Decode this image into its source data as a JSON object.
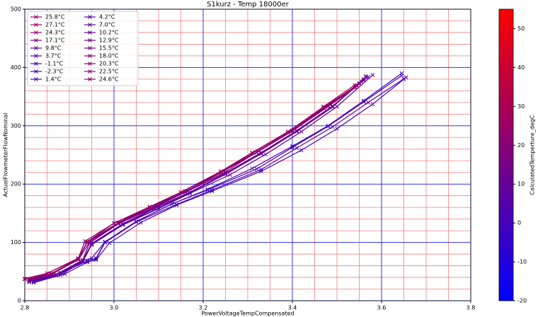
{
  "chart_data": {
    "type": "line",
    "title": "S1kurz - Temp 18000er",
    "x_label": "PowerVoltageTempCompensated",
    "y_label": "ActualFlowmeterFlowNominal",
    "xlim": [
      2.8,
      3.8
    ],
    "ylim": [
      0,
      500
    ],
    "xticks": [
      2.8,
      {
        "value": 3,
        "label": "3.0"
      },
      3.2,
      3.4,
      3.6,
      3.8
    ],
    "yticks": [
      0,
      100,
      200,
      300,
      400,
      500
    ],
    "xminorticks": [
      2.85,
      2.9,
      2.95,
      3.05,
      3.1,
      3.15,
      3.25,
      3.3,
      3.35,
      3.45,
      3.5,
      3.55,
      3.65,
      3.7,
      3.75
    ],
    "yminorticks": [
      20,
      40,
      60,
      80,
      120,
      140,
      160,
      180,
      220,
      240,
      260,
      280,
      320,
      340,
      360,
      380,
      420,
      440,
      460,
      480
    ],
    "grid": true,
    "major_grid_color": "#3333ee",
    "minor_grid_color": "#f08080",
    "marker": "x",
    "legend": {
      "position": "upper left",
      "ncol": 2
    },
    "colorbar": {
      "label": "CalculatedTemperture_degC",
      "lim": [
        -20,
        55
      ],
      "ticks": [
        -20,
        -10,
        0,
        10,
        20,
        30,
        40,
        50
      ],
      "colors": [
        "#0000ff",
        "#ff0000"
      ]
    },
    "series": [
      {
        "name": "25.8°C",
        "color": "#9c0063",
        "x": [
          2.81,
          2.86,
          2.92,
          2.94,
          3.01,
          3.08,
          3.16,
          3.24,
          3.32,
          3.4,
          3.48,
          3.55
        ],
        "values": [
          37,
          46,
          72,
          101,
          134,
          160,
          187,
          221,
          255,
          292,
          334,
          372
        ]
      },
      {
        "name": "27.1°C",
        "color": "#a0005f",
        "x": [
          2.8,
          2.85,
          2.92,
          2.935,
          3.0,
          3.08,
          3.15,
          3.24,
          3.31,
          3.39,
          3.47,
          3.54
        ],
        "values": [
          38,
          47,
          73,
          102,
          133,
          161,
          186,
          222,
          254,
          289,
          333,
          370
        ]
      },
      {
        "name": "24.3°C",
        "color": "#970068",
        "x": [
          2.81,
          2.86,
          2.92,
          2.94,
          3.01,
          3.09,
          3.16,
          3.25,
          3.32,
          3.4,
          3.48,
          3.56
        ],
        "values": [
          36,
          45,
          71,
          100,
          134,
          161,
          188,
          221,
          255,
          291,
          333,
          378
        ]
      },
      {
        "name": "17.1°C",
        "color": "#7e0081",
        "x": [
          2.81,
          2.87,
          2.93,
          2.945,
          3.01,
          3.09,
          3.16,
          3.25,
          3.33,
          3.41,
          3.49,
          3.57
        ],
        "values": [
          35,
          45,
          70,
          99,
          132,
          160,
          186,
          219,
          254,
          292,
          334,
          384
        ]
      },
      {
        "name": "9.8°C",
        "color": "#65009a",
        "x": [
          2.82,
          2.87,
          2.93,
          2.95,
          3.02,
          3.09,
          3.17,
          3.25,
          3.33,
          3.41,
          3.49,
          3.565
        ],
        "values": [
          34,
          44,
          68,
          98,
          131,
          158,
          185,
          217,
          252,
          290,
          332,
          385
        ]
      },
      {
        "name": "3.7°C",
        "color": "#5100ae",
        "x": [
          2.82,
          2.88,
          2.94,
          2.96,
          2.98,
          3.05,
          3.14,
          3.22,
          3.33,
          3.41,
          3.49,
          3.57,
          3.655
        ],
        "values": [
          32,
          47,
          68,
          72,
          100,
          135,
          165,
          190,
          225,
          262,
          298,
          340,
          383
        ]
      },
      {
        "name": "-1.1°C",
        "color": "#4000bf",
        "x": [
          2.82,
          2.89,
          2.94,
          2.96,
          2.99,
          3.06,
          3.14,
          3.22,
          3.33,
          3.42,
          3.5,
          3.58,
          3.65
        ],
        "values": [
          31,
          46,
          66,
          70,
          99,
          134,
          164,
          188,
          222,
          258,
          295,
          337,
          380
        ]
      },
      {
        "name": "-2.3°C",
        "color": "#3c00c3",
        "x": [
          2.81,
          2.88,
          2.94,
          2.96,
          2.98,
          3.05,
          3.13,
          3.21,
          3.31,
          3.4,
          3.48,
          3.56,
          3.645
        ],
        "values": [
          32,
          48,
          68,
          73,
          101,
          136,
          166,
          191,
          227,
          265,
          300,
          343,
          390
        ]
      },
      {
        "name": "1.4°C",
        "color": "#4900b6",
        "x": [
          2.81,
          2.88,
          2.93,
          2.95,
          2.98,
          3.05,
          3.13,
          3.21,
          3.32,
          3.4,
          3.48,
          3.56,
          3.645
        ],
        "values": [
          33,
          48,
          69,
          73,
          101,
          136,
          166,
          190,
          226,
          263,
          299,
          341,
          386
        ]
      },
      {
        "name": "4.2°C",
        "color": "#5200ad",
        "x": [
          2.82,
          2.88,
          2.93,
          2.95,
          3.02,
          3.1,
          3.17,
          3.26,
          3.34,
          3.42,
          3.5,
          3.58
        ],
        "values": [
          33,
          44,
          67,
          96,
          130,
          158,
          184,
          216,
          251,
          290,
          333,
          387
        ]
      },
      {
        "name": "7.0°C",
        "color": "#5c00a3",
        "x": [
          2.82,
          2.87,
          2.93,
          2.95,
          3.02,
          3.1,
          3.17,
          3.25,
          3.33,
          3.41,
          3.49,
          3.565
        ],
        "values": [
          34,
          44,
          68,
          97,
          131,
          159,
          185,
          217,
          253,
          291,
          333,
          384
        ]
      },
      {
        "name": "10.2°C",
        "color": "#670098",
        "x": [
          2.82,
          2.87,
          2.93,
          2.95,
          3.02,
          3.09,
          3.17,
          3.25,
          3.33,
          3.41,
          3.49,
          3.56
        ],
        "values": [
          34,
          45,
          69,
          98,
          132,
          159,
          186,
          218,
          253,
          291,
          332,
          380
        ]
      },
      {
        "name": "12.9°C",
        "color": "#70008f",
        "x": [
          2.81,
          2.87,
          2.93,
          2.945,
          3.01,
          3.09,
          3.16,
          3.25,
          3.33,
          3.41,
          3.49,
          3.555
        ],
        "values": [
          35,
          45,
          69,
          99,
          132,
          160,
          186,
          219,
          254,
          291,
          333,
          376
        ]
      },
      {
        "name": "15.5°C",
        "color": "#790086",
        "x": [
          2.81,
          2.86,
          2.92,
          2.945,
          3.01,
          3.09,
          3.16,
          3.24,
          3.32,
          3.4,
          3.48,
          3.55
        ],
        "values": [
          35,
          46,
          70,
          100,
          133,
          160,
          187,
          220,
          255,
          292,
          334,
          373
        ]
      },
      {
        "name": "18.0°C",
        "color": "#81007e",
        "x": [
          2.81,
          2.86,
          2.92,
          2.94,
          3.01,
          3.08,
          3.16,
          3.24,
          3.32,
          3.4,
          3.48,
          3.545
        ],
        "values": [
          36,
          46,
          71,
          100,
          133,
          160,
          187,
          220,
          254,
          291,
          333,
          368
        ]
      },
      {
        "name": "20.3°C",
        "color": "#890076",
        "x": [
          2.81,
          2.86,
          2.92,
          2.94,
          3.01,
          3.08,
          3.15,
          3.24,
          3.32,
          3.4,
          3.47,
          3.54
        ],
        "values": [
          36,
          46,
          71,
          101,
          134,
          161,
          186,
          221,
          255,
          292,
          330,
          365
        ]
      },
      {
        "name": "22.5°C",
        "color": "#91006e",
        "x": [
          2.8,
          2.86,
          2.92,
          2.94,
          3.0,
          3.08,
          3.15,
          3.24,
          3.31,
          3.39,
          3.47,
          3.54
        ],
        "values": [
          37,
          47,
          72,
          101,
          133,
          161,
          186,
          221,
          253,
          289,
          331,
          367
        ]
      },
      {
        "name": "24.6°C",
        "color": "#980067",
        "x": [
          2.8,
          2.85,
          2.92,
          2.935,
          3.0,
          3.08,
          3.15,
          3.24,
          3.31,
          3.39,
          3.47,
          3.545
        ],
        "values": [
          37,
          47,
          72,
          102,
          133,
          161,
          186,
          222,
          254,
          290,
          332,
          369
        ]
      }
    ]
  }
}
